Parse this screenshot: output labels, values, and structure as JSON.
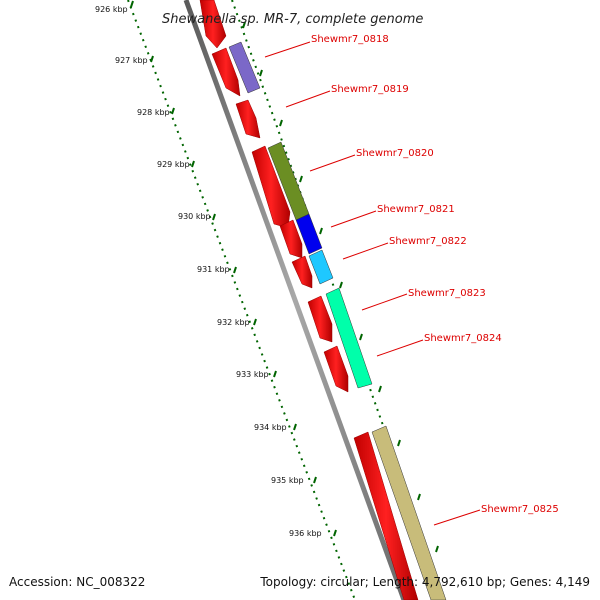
{
  "title": "Shewanella sp. MR-7, complete genome",
  "accession_text": "Accession: NC_008322",
  "topology_text": "Topology: circular; Length: 4,792,610 bp; Genes: 4,149",
  "ticks": [
    "926 kbp",
    "927 kbp",
    "928 kbp",
    "929 kbp",
    "930 kbp",
    "931 kbp",
    "932 kbp",
    "933 kbp",
    "934 kbp",
    "935 kbp",
    "936 kbp"
  ],
  "genes": [
    {
      "label": "Shewmr7_0818",
      "color": "#7b68c8"
    },
    {
      "label": "Shewmr7_0819",
      "color": "#ff0000"
    },
    {
      "label": "Shewmr7_0820",
      "color": "#6b8e23"
    },
    {
      "label": "Shewmr7_0821",
      "color": "#0000ee"
    },
    {
      "label": "Shewmr7_0822",
      "color": "#1ec8ff"
    },
    {
      "label": "Shewmr7_0823",
      "color": "#00ffaa"
    },
    {
      "label": "Shewmr7_0824",
      "color": "#00ffaa"
    },
    {
      "label": "Shewmr7_0825",
      "color": "#c8bc7a"
    }
  ],
  "colors": {
    "cds_forward": "#ff0000",
    "backbone": "#808080",
    "tick": "#006400",
    "label": "#dd0000"
  }
}
